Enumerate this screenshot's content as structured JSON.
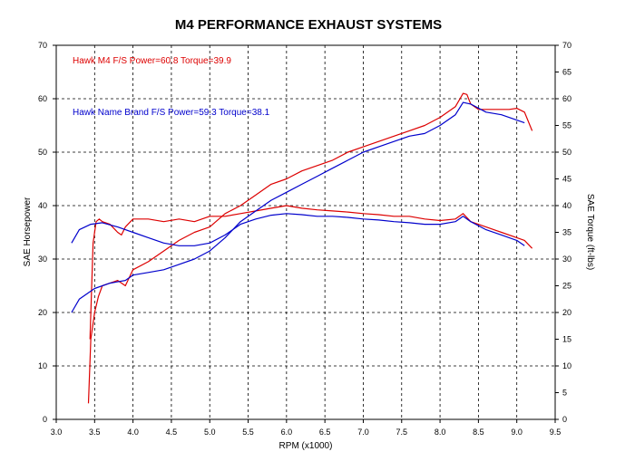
{
  "chart_data": {
    "type": "line",
    "title": "M4 PERFORMANCE EXHAUST SYSTEMS",
    "xlabel": "RPM (x1000)",
    "ylabel": "SAE Horsepower",
    "y2label": "SAE Torque (ft-lbs)",
    "xlim": [
      3.0,
      9.5
    ],
    "ylim": [
      0,
      70
    ],
    "y2lim": [
      0,
      70
    ],
    "x_ticks": [
      "3.0",
      "3.5",
      "4.0",
      "4.5",
      "5.0",
      "5.5",
      "6.0",
      "6.5",
      "7.0",
      "7.5",
      "8.0",
      "8.5",
      "9.0",
      "9.5"
    ],
    "y_ticks": [
      "0",
      "10",
      "20",
      "30",
      "40",
      "50",
      "60",
      "70"
    ],
    "y2_ticks": [
      "0",
      "5",
      "10",
      "15",
      "20",
      "25",
      "30",
      "35",
      "40",
      "45",
      "50",
      "55",
      "60",
      "65",
      "70"
    ],
    "grid": true,
    "legend_position": "top-left",
    "legend": [
      {
        "text": "Hawk  M4 F/S  Power=60.8  Torque=39.9",
        "color": "#dd0000"
      },
      {
        "text": "Hawk  Name Brand F/S  Power=59.3  Torque=38.1",
        "color": "#0000cc"
      }
    ],
    "series": [
      {
        "name": "M4 F/S Power",
        "color": "#dd0000",
        "x": [
          3.42,
          3.45,
          3.5,
          3.55,
          3.6,
          3.7,
          3.8,
          3.9,
          4.0,
          4.2,
          4.4,
          4.6,
          4.8,
          5.0,
          5.2,
          5.4,
          5.6,
          5.8,
          6.0,
          6.2,
          6.4,
          6.6,
          6.8,
          7.0,
          7.2,
          7.4,
          7.6,
          7.8,
          8.0,
          8.2,
          8.3,
          8.35,
          8.4,
          8.5,
          8.7,
          8.9,
          9.0,
          9.1,
          9.2
        ],
        "values": [
          3,
          15,
          20,
          23,
          25,
          25.5,
          26,
          25,
          28,
          29.5,
          31.5,
          33.5,
          35,
          36,
          38.5,
          40,
          42,
          44,
          45,
          46.5,
          47.5,
          48.5,
          50,
          51,
          52,
          53,
          54,
          55,
          56.5,
          58.5,
          61,
          60.8,
          59,
          58,
          58,
          58,
          58.2,
          57.5,
          54
        ]
      },
      {
        "name": "M4 F/S Torque",
        "color": "#dd0000",
        "x": [
          3.44,
          3.48,
          3.52,
          3.56,
          3.6,
          3.7,
          3.8,
          3.85,
          3.9,
          4.0,
          4.2,
          4.4,
          4.6,
          4.8,
          5.0,
          5.2,
          5.4,
          5.6,
          5.8,
          6.0,
          6.2,
          6.4,
          6.6,
          6.8,
          7.0,
          7.2,
          7.4,
          7.6,
          7.8,
          8.0,
          8.2,
          8.3,
          8.4,
          8.6,
          8.8,
          9.0,
          9.1,
          9.2
        ],
        "values": [
          15,
          33,
          37,
          37.5,
          37,
          36.5,
          35,
          34.5,
          36,
          37.5,
          37.5,
          37,
          37.5,
          37,
          38,
          38,
          38.5,
          39,
          39.5,
          40,
          39.5,
          39.2,
          39,
          38.8,
          38.5,
          38.3,
          38,
          38,
          37.5,
          37.2,
          37.5,
          38.5,
          37,
          36,
          35,
          34,
          33.5,
          32
        ]
      },
      {
        "name": "Name Brand F/S Power",
        "color": "#0000cc",
        "x": [
          3.2,
          3.3,
          3.5,
          3.7,
          3.9,
          4.0,
          4.2,
          4.4,
          4.6,
          4.8,
          5.0,
          5.2,
          5.4,
          5.6,
          5.8,
          6.0,
          6.2,
          6.4,
          6.6,
          6.8,
          7.0,
          7.2,
          7.4,
          7.6,
          7.8,
          8.0,
          8.2,
          8.3,
          8.4,
          8.6,
          8.8,
          9.0,
          9.1
        ],
        "values": [
          20,
          22.5,
          24.5,
          25.5,
          26,
          27,
          27.5,
          28,
          29,
          30,
          31.5,
          34,
          37,
          39,
          41,
          42.5,
          44,
          45.5,
          47,
          48.5,
          50,
          51,
          52,
          53,
          53.5,
          55,
          57,
          59.3,
          59,
          57.5,
          57,
          56,
          55.5
        ]
      },
      {
        "name": "Name Brand F/S Torque",
        "color": "#0000cc",
        "x": [
          3.2,
          3.3,
          3.45,
          3.6,
          3.8,
          4.0,
          4.2,
          4.4,
          4.6,
          4.8,
          5.0,
          5.2,
          5.4,
          5.6,
          5.8,
          6.0,
          6.2,
          6.4,
          6.6,
          6.8,
          7.0,
          7.2,
          7.4,
          7.6,
          7.8,
          8.0,
          8.2,
          8.3,
          8.4,
          8.6,
          8.8,
          9.0,
          9.1
        ],
        "values": [
          33,
          35.5,
          36.5,
          36.8,
          36,
          35,
          34,
          33,
          32.5,
          32.5,
          33,
          34.5,
          36.5,
          37.5,
          38.2,
          38.5,
          38.3,
          38,
          38,
          37.8,
          37.5,
          37.3,
          37,
          36.8,
          36.5,
          36.5,
          37,
          38,
          37,
          35.5,
          34.5,
          33.5,
          32.5
        ]
      }
    ]
  }
}
